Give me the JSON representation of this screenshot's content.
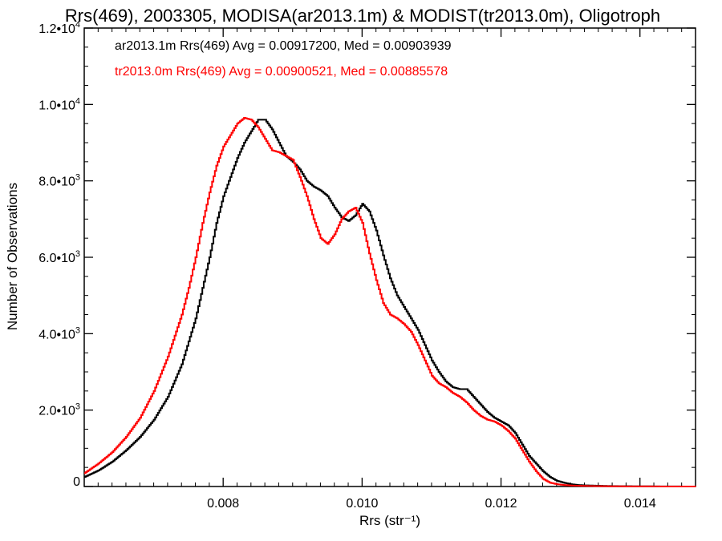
{
  "chart_data": {
    "type": "line",
    "step": true,
    "title": "Rrs(469), 2003305, MODISA(ar2013.1m) & MODIST(tr2013.0m), Oligotroph",
    "xlabel": "Rrs (str⁻¹)",
    "ylabel": "Number of Observations",
    "xlim": [
      0.006,
      0.0148
    ],
    "ylim": [
      0,
      12000
    ],
    "xticks": [
      {
        "value": 0.008,
        "label": "0.008"
      },
      {
        "value": 0.01,
        "label": "0.010"
      },
      {
        "value": 0.012,
        "label": "0.012"
      },
      {
        "value": 0.014,
        "label": "0.014"
      }
    ],
    "yticks": [
      {
        "value": 0,
        "base": "0",
        "exp": ""
      },
      {
        "value": 2000,
        "base": "2.0•10",
        "exp": "3"
      },
      {
        "value": 4000,
        "base": "4.0•10",
        "exp": "3"
      },
      {
        "value": 6000,
        "base": "6.0•10",
        "exp": "3"
      },
      {
        "value": 8000,
        "base": "8.0•10",
        "exp": "3"
      },
      {
        "value": 10000,
        "base": "1.0•10",
        "exp": "4"
      },
      {
        "value": 12000,
        "base": "1.2•10",
        "exp": "4"
      }
    ],
    "legend": [
      {
        "text": "ar2013.1m Rrs(469) Avg = 0.00917200, Med = 0.00903939",
        "color": "#000000"
      },
      {
        "text": "tr2013.0m Rrs(469) Avg = 0.00900521, Med = 0.00885578",
        "color": "#ff0000"
      }
    ],
    "series": [
      {
        "color": "#000000",
        "x": [
          0.006,
          0.0062,
          0.0064,
          0.0066,
          0.0068,
          0.007,
          0.0072,
          0.0074,
          0.0075,
          0.0076,
          0.0077,
          0.0078,
          0.0079,
          0.008,
          0.0081,
          0.0082,
          0.0083,
          0.0084,
          0.0085,
          0.0086,
          0.0087,
          0.0088,
          0.0089,
          0.009,
          0.0091,
          0.0092,
          0.0093,
          0.0094,
          0.0095,
          0.0096,
          0.0097,
          0.0098,
          0.0099,
          0.01,
          0.0101,
          0.0102,
          0.0103,
          0.0104,
          0.0105,
          0.0106,
          0.0107,
          0.0108,
          0.0109,
          0.011,
          0.0111,
          0.0112,
          0.0113,
          0.0114,
          0.0115,
          0.0116,
          0.0117,
          0.0118,
          0.0119,
          0.012,
          0.0121,
          0.0122,
          0.0123,
          0.0124,
          0.0125,
          0.0126,
          0.0127,
          0.0128,
          0.0129,
          0.013,
          0.0131,
          0.0132,
          0.0134,
          0.0136,
          0.014,
          0.0148
        ],
        "y": [
          250,
          420,
          650,
          950,
          1300,
          1750,
          2350,
          3200,
          3800,
          4400,
          5200,
          6000,
          6900,
          7600,
          8100,
          8600,
          9000,
          9300,
          9600,
          9600,
          9350,
          9000,
          8650,
          8500,
          8300,
          8000,
          7850,
          7750,
          7600,
          7300,
          7050,
          6950,
          7100,
          7400,
          7200,
          6700,
          6050,
          5450,
          5000,
          4700,
          4400,
          4100,
          3700,
          3300,
          3000,
          2750,
          2600,
          2550,
          2550,
          2350,
          2150,
          1950,
          1800,
          1700,
          1600,
          1400,
          1100,
          800,
          600,
          400,
          250,
          150,
          100,
          60,
          40,
          30,
          20,
          10,
          5,
          0
        ]
      },
      {
        "color": "#ff0000",
        "x": [
          0.006,
          0.0062,
          0.0064,
          0.0066,
          0.0068,
          0.007,
          0.0072,
          0.0074,
          0.0075,
          0.0076,
          0.0077,
          0.0078,
          0.0079,
          0.008,
          0.0081,
          0.0082,
          0.0083,
          0.0084,
          0.0085,
          0.0086,
          0.0087,
          0.0088,
          0.0089,
          0.009,
          0.0091,
          0.0092,
          0.0093,
          0.0094,
          0.0095,
          0.0096,
          0.0097,
          0.0098,
          0.0099,
          0.01,
          0.0101,
          0.0102,
          0.0103,
          0.0104,
          0.0105,
          0.0106,
          0.0107,
          0.0108,
          0.0109,
          0.011,
          0.0111,
          0.0112,
          0.0113,
          0.0114,
          0.0115,
          0.0116,
          0.0117,
          0.0118,
          0.0119,
          0.012,
          0.0121,
          0.0122,
          0.0123,
          0.0124,
          0.0125,
          0.0126,
          0.0127,
          0.0128,
          0.0129,
          0.013,
          0.0132,
          0.0134,
          0.0136,
          0.014,
          0.0148
        ],
        "y": [
          350,
          600,
          900,
          1300,
          1800,
          2500,
          3400,
          4500,
          5200,
          6000,
          6900,
          7700,
          8400,
          8900,
          9200,
          9500,
          9650,
          9600,
          9400,
          9100,
          8800,
          8750,
          8650,
          8550,
          8100,
          7600,
          7000,
          6500,
          6350,
          6600,
          7000,
          7200,
          7300,
          6900,
          6100,
          5400,
          4800,
          4500,
          4400,
          4250,
          4050,
          3700,
          3300,
          2900,
          2700,
          2600,
          2450,
          2350,
          2200,
          2000,
          1850,
          1750,
          1700,
          1600,
          1450,
          1250,
          950,
          650,
          400,
          200,
          100,
          60,
          40,
          25,
          15,
          10,
          5,
          2,
          0
        ]
      }
    ]
  }
}
